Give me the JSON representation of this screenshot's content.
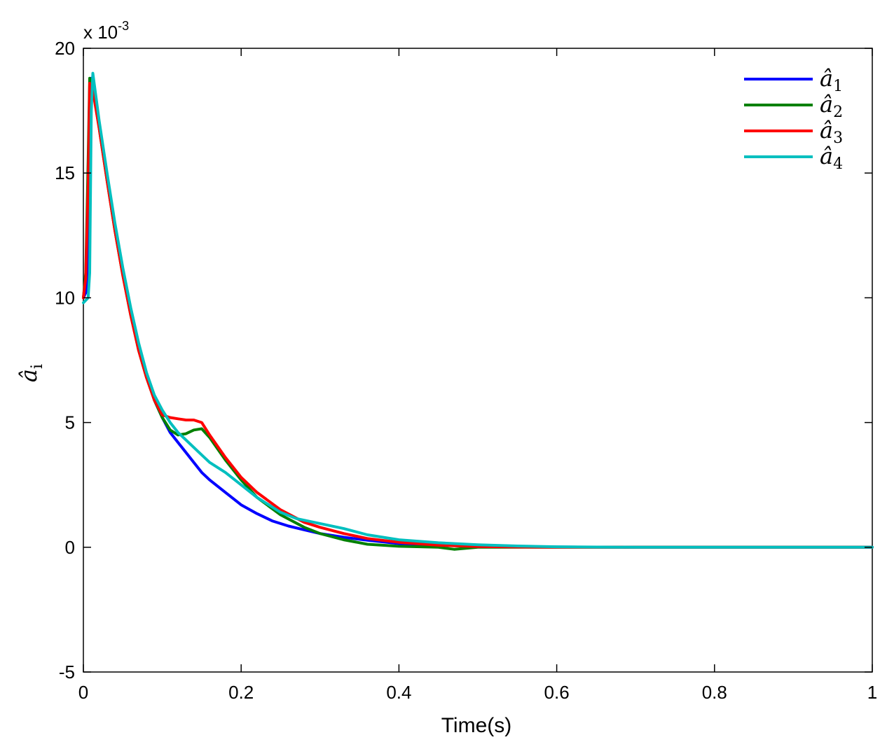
{
  "chart_data": {
    "type": "line",
    "xlabel": "Time(s)",
    "ylabel": "â_i",
    "ylabel_base": "â",
    "ylabel_sub": "i",
    "y_exponent_label": "x 10",
    "y_exponent_power": "-3",
    "xlim": [
      0,
      1
    ],
    "ylim": [
      -5,
      20
    ],
    "xticks": [
      0,
      0.2,
      0.4,
      0.6,
      0.8,
      1
    ],
    "xtick_labels": [
      "0",
      "0.2",
      "0.4",
      "0.6",
      "0.8",
      "1"
    ],
    "yticks": [
      -5,
      0,
      5,
      10,
      15,
      20
    ],
    "ytick_labels": [
      "-5",
      "0",
      "5",
      "10",
      "15",
      "20"
    ],
    "grid": false,
    "legend_position": "top-right",
    "series": [
      {
        "name": "â_1",
        "label_base": "â",
        "label_sub": "1",
        "color": "#0000ff",
        "x": [
          0,
          0.003,
          0.006,
          0.008,
          0.01,
          0.012,
          0.02,
          0.03,
          0.04,
          0.05,
          0.06,
          0.07,
          0.08,
          0.09,
          0.1,
          0.11,
          0.12,
          0.13,
          0.14,
          0.15,
          0.16,
          0.18,
          0.2,
          0.22,
          0.24,
          0.26,
          0.28,
          0.3,
          0.33,
          0.36,
          0.4,
          0.45,
          0.5,
          0.55,
          0.6,
          0.7,
          0.8,
          0.9,
          1.0
        ],
        "y": [
          10.0,
          10.2,
          11.5,
          17.0,
          18.8,
          18.5,
          16.9,
          14.8,
          12.8,
          11.0,
          9.4,
          8.0,
          6.9,
          5.9,
          5.2,
          4.6,
          4.2,
          3.8,
          3.4,
          3.0,
          2.7,
          2.2,
          1.7,
          1.35,
          1.05,
          0.85,
          0.7,
          0.55,
          0.4,
          0.28,
          0.15,
          0.08,
          0.04,
          0.02,
          0.01,
          0.0,
          0.0,
          0.0,
          0.0
        ]
      },
      {
        "name": "â_2",
        "label_base": "â",
        "label_sub": "2",
        "color": "#008000",
        "x": [
          0,
          0.003,
          0.006,
          0.008,
          0.01,
          0.012,
          0.02,
          0.03,
          0.04,
          0.05,
          0.06,
          0.07,
          0.08,
          0.09,
          0.1,
          0.11,
          0.12,
          0.13,
          0.14,
          0.15,
          0.16,
          0.18,
          0.2,
          0.22,
          0.25,
          0.28,
          0.3,
          0.33,
          0.36,
          0.4,
          0.45,
          0.47,
          0.5,
          0.55,
          0.6,
          0.7,
          0.8,
          0.9,
          1.0
        ],
        "y": [
          10.0,
          11.0,
          15.5,
          18.8,
          18.7,
          18.4,
          16.8,
          14.7,
          12.7,
          10.9,
          9.3,
          7.9,
          6.8,
          5.9,
          5.2,
          4.7,
          4.5,
          4.55,
          4.7,
          4.75,
          4.4,
          3.5,
          2.7,
          2.0,
          1.3,
          0.8,
          0.55,
          0.3,
          0.12,
          0.04,
          0.0,
          -0.08,
          0.0,
          0.0,
          0.0,
          0.0,
          0.0,
          0.0,
          0.0
        ]
      },
      {
        "name": "â_3",
        "label_base": "â",
        "label_sub": "3",
        "color": "#ff0000",
        "x": [
          0,
          0.003,
          0.006,
          0.008,
          0.01,
          0.012,
          0.02,
          0.03,
          0.04,
          0.05,
          0.06,
          0.07,
          0.08,
          0.09,
          0.1,
          0.11,
          0.12,
          0.13,
          0.14,
          0.15,
          0.16,
          0.18,
          0.2,
          0.22,
          0.25,
          0.28,
          0.3,
          0.33,
          0.36,
          0.4,
          0.45,
          0.5,
          0.55,
          0.6,
          0.7,
          0.8,
          0.9,
          1.0
        ],
        "y": [
          10.0,
          10.8,
          14.5,
          18.6,
          18.5,
          18.3,
          16.8,
          14.7,
          12.7,
          10.9,
          9.3,
          7.9,
          6.8,
          5.9,
          5.3,
          5.2,
          5.15,
          5.1,
          5.1,
          5.0,
          4.5,
          3.6,
          2.8,
          2.2,
          1.5,
          1.0,
          0.8,
          0.55,
          0.35,
          0.2,
          0.08,
          0.03,
          0.01,
          0.0,
          0.0,
          0.0,
          0.0,
          0.0
        ]
      },
      {
        "name": "â_4",
        "label_base": "â",
        "label_sub": "4",
        "color": "#00bfbf",
        "x": [
          0,
          0.003,
          0.006,
          0.008,
          0.01,
          0.012,
          0.02,
          0.03,
          0.04,
          0.05,
          0.06,
          0.07,
          0.08,
          0.09,
          0.1,
          0.11,
          0.12,
          0.13,
          0.14,
          0.15,
          0.16,
          0.18,
          0.2,
          0.22,
          0.25,
          0.27,
          0.3,
          0.33,
          0.36,
          0.4,
          0.45,
          0.5,
          0.55,
          0.6,
          0.7,
          0.8,
          0.9,
          1.0
        ],
        "y": [
          9.8,
          9.9,
          10.0,
          11.0,
          17.5,
          19.0,
          17.1,
          15.0,
          13.0,
          11.2,
          9.6,
          8.2,
          7.0,
          6.1,
          5.5,
          5.0,
          4.6,
          4.3,
          4.0,
          3.7,
          3.4,
          3.0,
          2.5,
          2.0,
          1.4,
          1.15,
          0.95,
          0.75,
          0.5,
          0.3,
          0.18,
          0.1,
          0.05,
          0.02,
          0.0,
          0.0,
          0.0,
          0.0
        ]
      }
    ]
  }
}
